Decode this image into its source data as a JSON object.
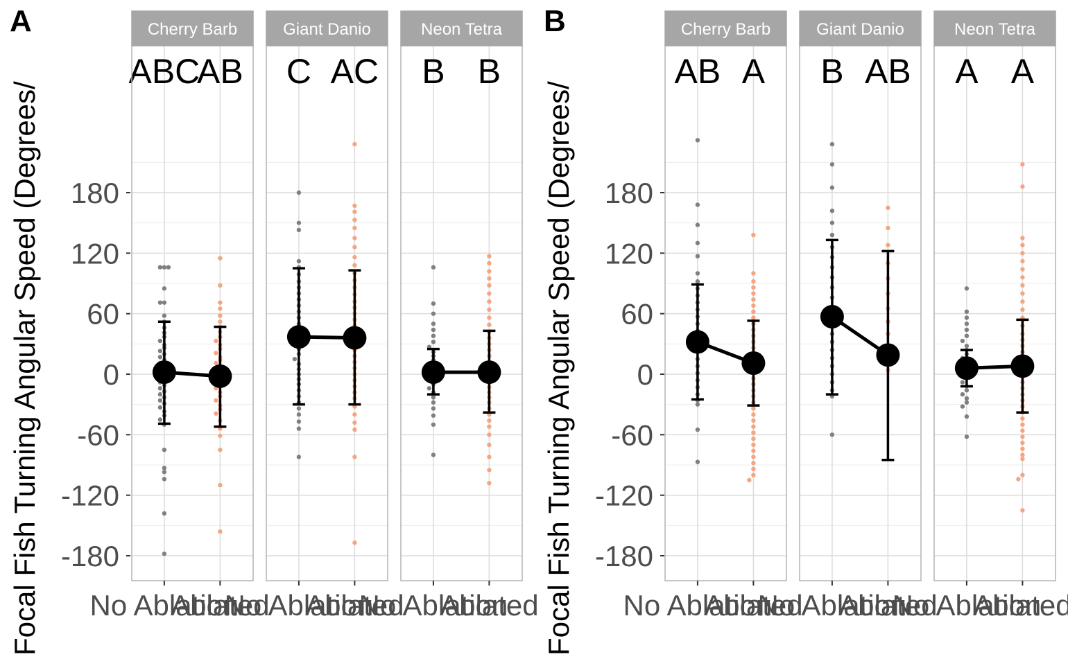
{
  "chart_data": [
    {
      "type": "scatter",
      "panel_label": "A",
      "ylabel": "Focal Fish Turning Angular Speed (Degrees/",
      "y_ticks": [
        180,
        120,
        60,
        0,
        -60,
        -120,
        -180
      ],
      "y_tick_labels": [
        "180",
        "120",
        "60",
        "0",
        "-60",
        "-120",
        "-180"
      ],
      "ylim": [
        -200,
        230
      ],
      "grid": true,
      "categories": [
        "No Ablation",
        "Ablated"
      ],
      "x_tick_labels": [
        "No Ablation",
        "Ablated"
      ],
      "colors": {
        "No Ablation": "#808080",
        "Ablated": "#f4a582"
      },
      "facets": [
        {
          "strip": "Cherry Barb",
          "letters": [
            "ABC",
            "AB"
          ],
          "mean": [
            2,
            -2
          ],
          "error": [
            [
              -49,
              52
            ],
            [
              -52,
              47
            ]
          ],
          "points": [
            [
              106,
              106,
              106,
              85,
              71,
              71,
              58,
              52,
              46,
              41,
              37,
              33,
              29,
              26,
              23,
              20,
              17,
              14,
              11,
              8,
              5,
              2,
              0,
              -2,
              -5,
              -8,
              -11,
              -14,
              -17,
              -20,
              -23,
              -26,
              -29,
              -33,
              -37,
              -41,
              -45,
              -50,
              -75,
              -93,
              -97,
              -104,
              -138,
              -178
            ],
            [
              115,
              88,
              71,
              65,
              58,
              52,
              47,
              42,
              37,
              33,
              29,
              25,
              21,
              17,
              14,
              11,
              8,
              5,
              2,
              -1,
              -4,
              -7,
              -10,
              -14,
              -18,
              -22,
              -26,
              -31,
              -35,
              -39,
              -46,
              -54,
              -61,
              -75,
              -110,
              -156
            ]
          ]
        },
        {
          "strip": "Giant Danio",
          "letters": [
            "C",
            "AC"
          ],
          "mean": [
            37,
            36
          ],
          "error": [
            [
              -30,
              105
            ],
            [
              -30,
              103
            ]
          ],
          "points": [
            [
              180,
              150,
              143,
              112,
              106,
              99,
              92,
              86,
              80,
              74,
              68,
              62,
              56,
              50,
              45,
              40,
              35,
              30,
              25,
              20,
              15,
              10,
              5,
              0,
              -5,
              -10,
              -16,
              -22,
              -28,
              -34,
              -40,
              -47,
              -54,
              -82
            ],
            [
              228,
              167,
              161,
              153,
              145,
              135,
              126,
              116,
              108,
              100,
              93,
              86,
              79,
              72,
              66,
              60,
              54,
              48,
              42,
              36,
              30,
              24,
              18,
              12,
              6,
              0,
              -6,
              -12,
              -18,
              -24,
              -32,
              -40,
              -48,
              -55,
              -82,
              -167
            ]
          ]
        },
        {
          "strip": "Neon Tetra",
          "letters": [
            "B",
            "B"
          ],
          "mean": [
            2,
            2
          ],
          "error": [
            [
              -20,
              25
            ],
            [
              -38,
              43
            ]
          ],
          "points": [
            [
              106,
              70,
              60,
              50,
              44,
              38,
              32,
              27,
              22,
              18,
              14,
              10,
              6,
              3,
              0,
              -3,
              -6,
              -10,
              -14,
              -18,
              -23,
              -28,
              -34,
              -41,
              -50,
              -80
            ],
            [
              117,
              110,
              102,
              95,
              88,
              80,
              72,
              64,
              56,
              49,
              42,
              36,
              30,
              24,
              18,
              12,
              7,
              2,
              -3,
              -8,
              -13,
              -18,
              -23,
              -28,
              -34,
              -40,
              -46,
              -52,
              -60,
              -70,
              -82,
              -95,
              -108
            ]
          ]
        }
      ]
    },
    {
      "type": "scatter",
      "panel_label": "B",
      "ylabel": "Focal Fish Turning Angular Speed (Degrees/",
      "y_ticks": [
        180,
        120,
        60,
        0,
        -60,
        -120,
        -180
      ],
      "y_tick_labels": [
        "180",
        "120",
        "60",
        "0",
        "-60",
        "-120",
        "-180"
      ],
      "ylim": [
        -200,
        230
      ],
      "grid": true,
      "categories": [
        "No Ablation",
        "Ablated"
      ],
      "x_tick_labels": [
        "No Ablation",
        "Ablated"
      ],
      "colors": {
        "No Ablation": "#808080",
        "Ablated": "#f4a582"
      },
      "facets": [
        {
          "strip": "Cherry Barb",
          "letters": [
            "AB",
            "A"
          ],
          "mean": [
            32,
            11
          ],
          "error": [
            [
              -25,
              89
            ],
            [
              -31,
              53
            ]
          ],
          "points": [
            [
              232,
              168,
              148,
              130,
              117,
              100,
              92,
              85,
              78,
              71,
              64,
              57,
              50,
              43,
              36,
              29,
              22,
              15,
              8,
              1,
              -6,
              -13,
              -20,
              -26,
              -30,
              -55,
              -87
            ],
            [
              138,
              100,
              92,
              86,
              80,
              74,
              68,
              62,
              56,
              50,
              44,
              38,
              32,
              26,
              20,
              14,
              8,
              2,
              -4,
              -10,
              -16,
              -22,
              -28,
              -34,
              -40,
              -46,
              -52,
              -58,
              -64,
              -70,
              -76,
              -82,
              -88,
              -94,
              -100,
              -105
            ]
          ]
        },
        {
          "strip": "Giant Danio",
          "letters": [
            "B",
            "AB"
          ],
          "mean": [
            57,
            19
          ],
          "error": [
            [
              -20,
              133
            ],
            [
              -85,
              122
            ]
          ],
          "points": [
            [
              228,
              208,
              185,
              162,
              150,
              138,
              126,
              116,
              106,
              96,
              86,
              76,
              66,
              56,
              48,
              40,
              32,
              24,
              16,
              8,
              0,
              -8,
              -16,
              -22,
              -60
            ],
            [
              165,
              145,
              128,
              110,
              95,
              80,
              65,
              52,
              40,
              28,
              16,
              4
            ]
          ]
        },
        {
          "strip": "Neon Tetra",
          "letters": [
            "A",
            "A"
          ],
          "mean": [
            6,
            8
          ],
          "error": [
            [
              -12,
              24
            ],
            [
              -38,
              54
            ]
          ],
          "points": [
            [
              85,
              62,
              56,
              50,
              44,
              38,
              33,
              28,
              24,
              20,
              16,
              12,
              8,
              4,
              0,
              -4,
              -8,
              -12,
              -16,
              -20,
              -24,
              -28,
              -32,
              -42,
              -62
            ],
            [
              208,
              186,
              135,
              128,
              120,
              112,
              104,
              96,
              88,
              80,
              72,
              64,
              56,
              48,
              40,
              34,
              28,
              22,
              16,
              10,
              4,
              -2,
              -8,
              -14,
              -20,
              -26,
              -32,
              -38,
              -44,
              -50,
              -56,
              -62,
              -68,
              -74,
              -80,
              -84,
              -100,
              -104,
              -135
            ]
          ]
        }
      ]
    }
  ]
}
